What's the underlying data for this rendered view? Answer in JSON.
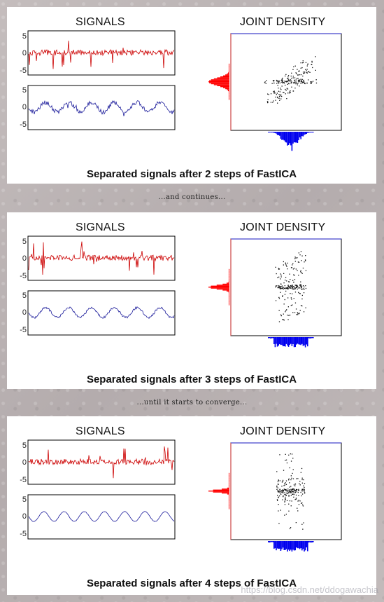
{
  "panels": [
    {
      "signals_title": "SIGNALS",
      "density_title": "JOINT DENSITY",
      "caption": "Separated signals after 2 steps of FastICA",
      "ticks": [
        "5",
        "0",
        "-5"
      ]
    },
    {
      "signals_title": "SIGNALS",
      "density_title": "JOINT DENSITY",
      "caption": "Separated signals after 3 steps of FastICA",
      "ticks": [
        "5",
        "0",
        "-5"
      ]
    },
    {
      "signals_title": "SIGNALS",
      "density_title": "JOINT DENSITY",
      "caption": "Separated signals after 4 steps of FastICA",
      "ticks": [
        "5",
        "0",
        "-5"
      ]
    }
  ],
  "separators": [
    "...and continues...",
    "...until it starts to converge..."
  ],
  "watermark": "https://blog.csdn.net/ddogawachia",
  "colors": {
    "red_signal": "#cc0000",
    "blue_signal": "#1a1a9a",
    "red_hist": "#ff0000",
    "blue_hist": "#0000ee",
    "frame": "#000000"
  }
}
